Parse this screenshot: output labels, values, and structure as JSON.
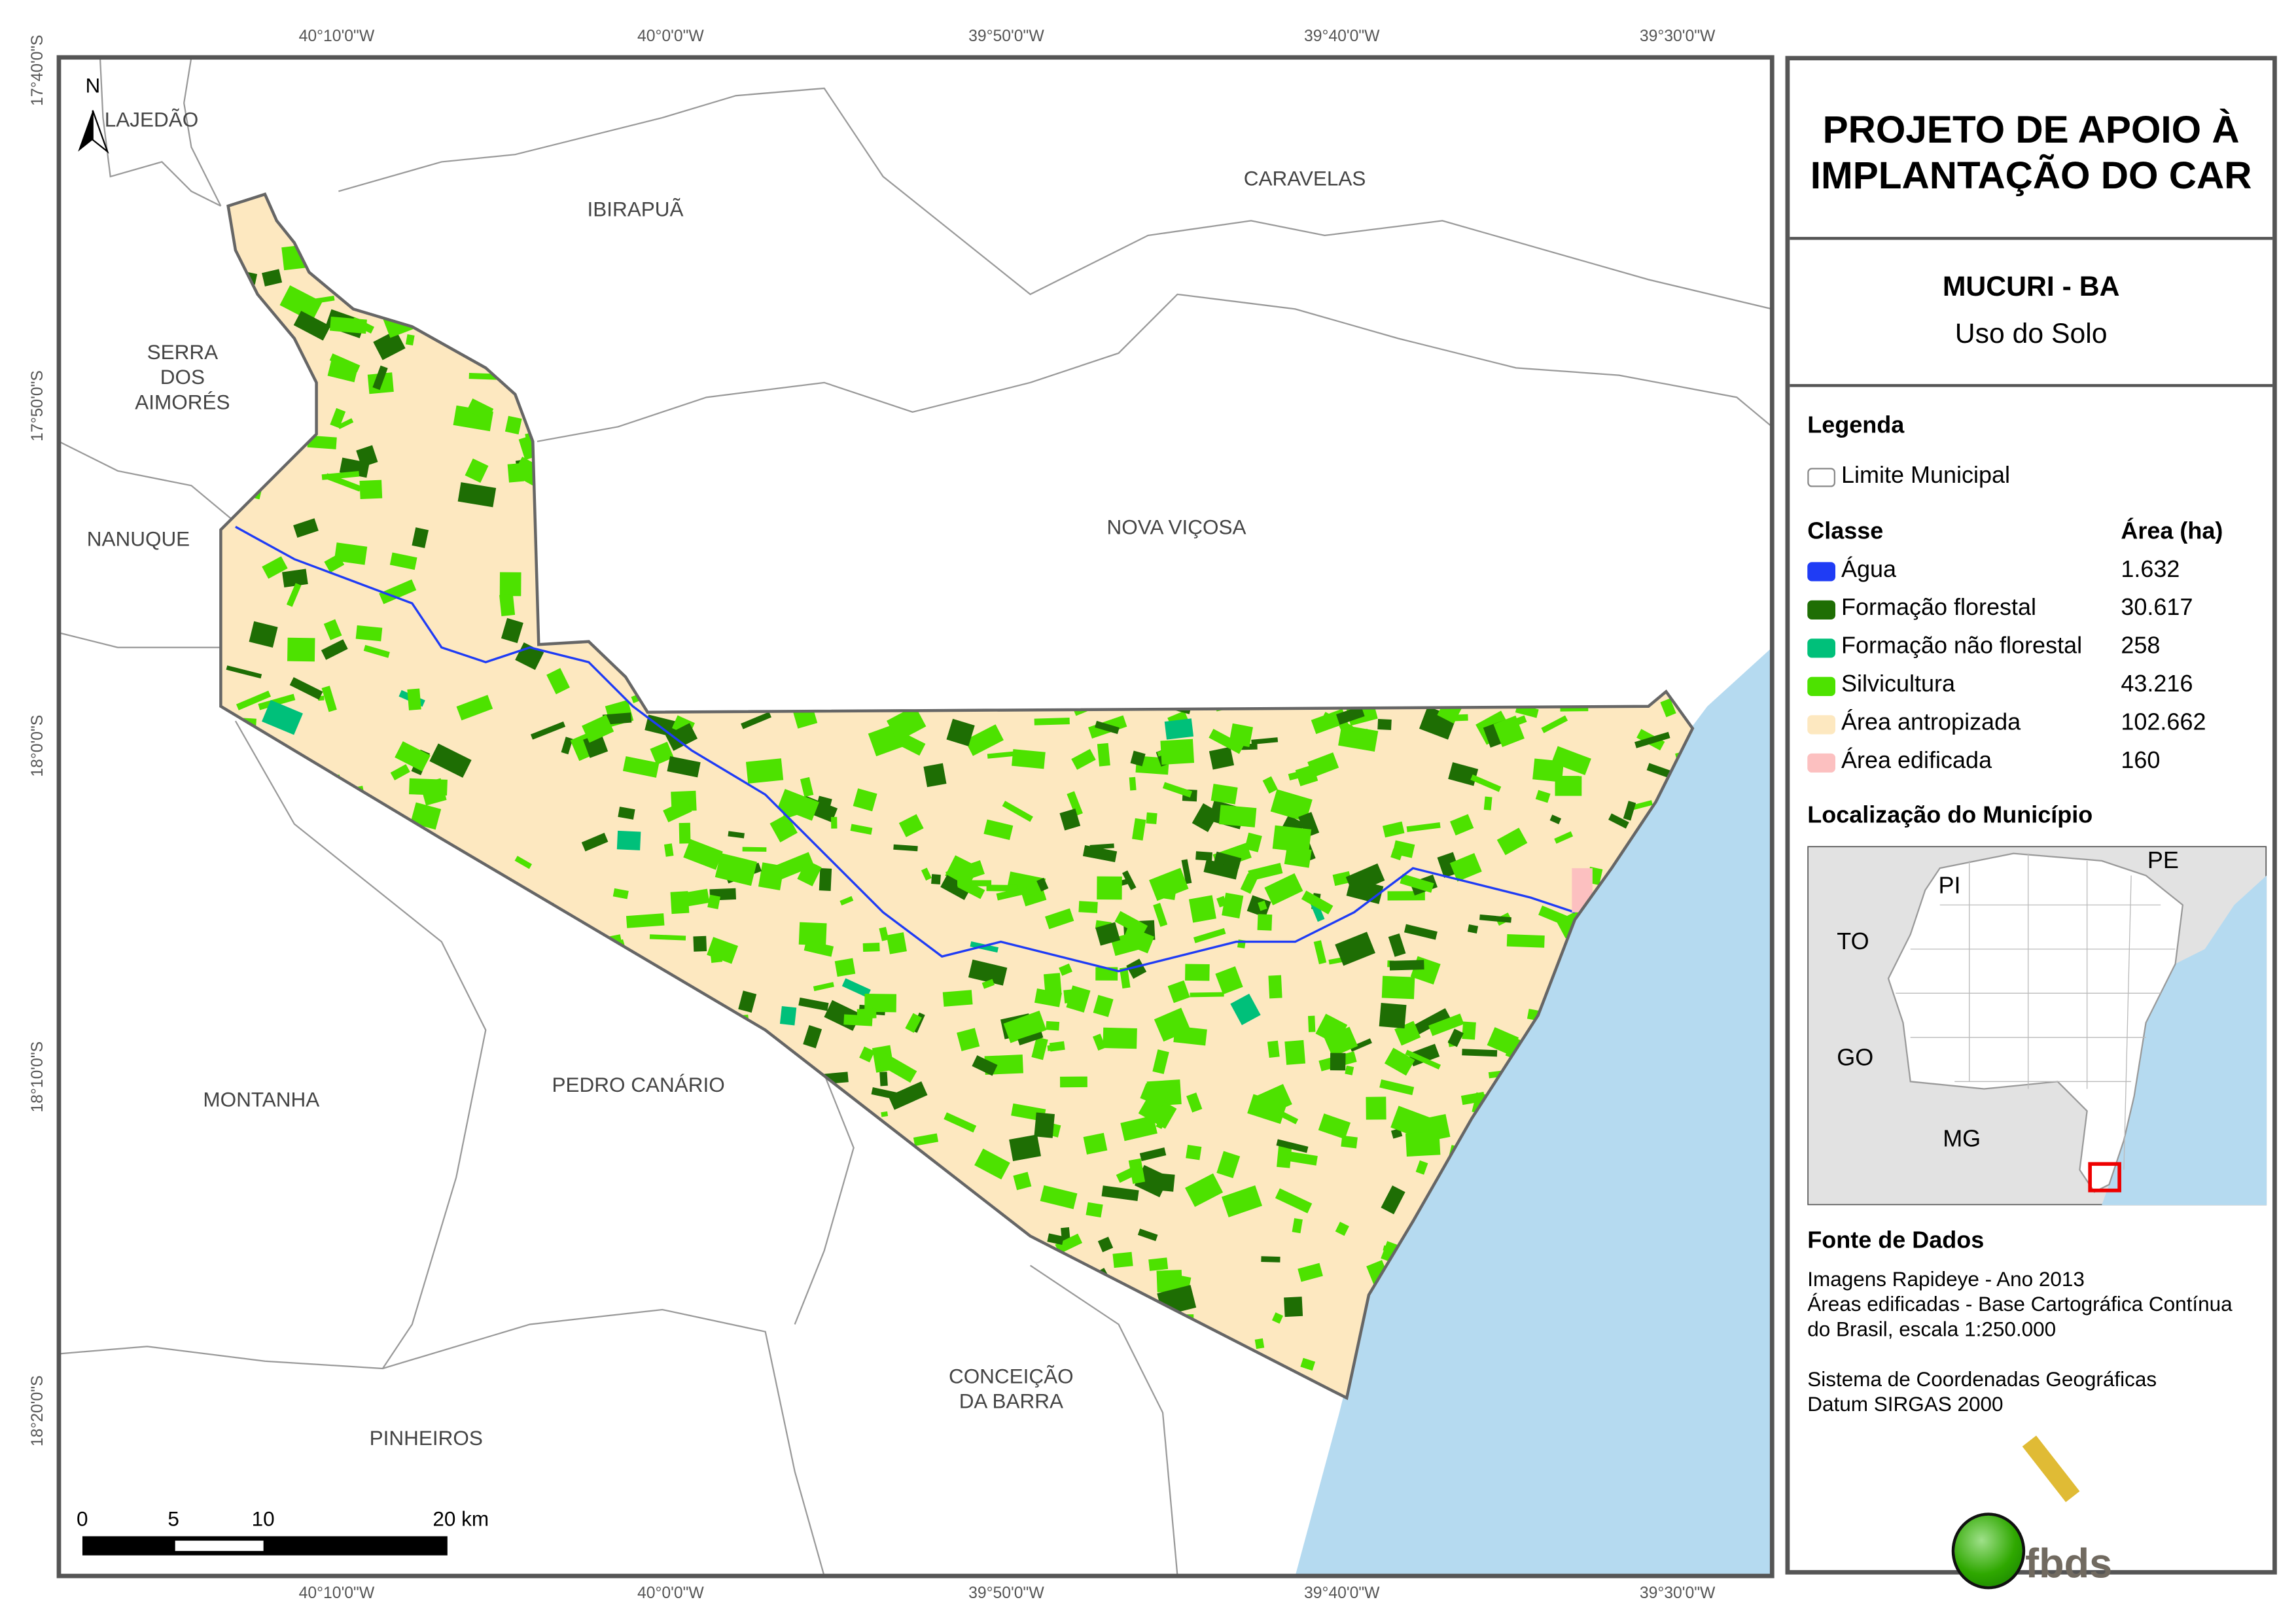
{
  "title": "PROJETO DE APOIO À IMPLANTAÇÃO DO CAR",
  "municipality": "MUCURI - BA",
  "subtitle": "Uso do Solo",
  "legend": {
    "heading": "Legenda",
    "boundary_label": "Limite Municipal",
    "class_header": "Classe",
    "area_header": "Área (ha)",
    "classes": [
      {
        "label": "Água",
        "area": "1.632",
        "color": "#1f3cf5"
      },
      {
        "label": "Formação florestal",
        "area": "30.617",
        "color": "#1e6e04"
      },
      {
        "label": "Formação não florestal",
        "area": "258",
        "color": "#00c07a"
      },
      {
        "label": "Silvicultura",
        "area": "43.216",
        "color": "#4de200"
      },
      {
        "label": "Área antropizada",
        "area": "102.662",
        "color": "#fde8c0"
      },
      {
        "label": "Área edificada",
        "area": "160",
        "color": "#fcc0c0"
      }
    ]
  },
  "location": {
    "heading": "Localização do Município",
    "states": [
      "PI",
      "PE",
      "TO",
      "GO",
      "MG"
    ]
  },
  "sources": {
    "heading": "Fonte de Dados",
    "lines": [
      "Imagens Rapideye - Ano 2013",
      "Áreas edificadas - Base Cartográfica Contínua",
      "do Brasil, escala 1:250.000"
    ],
    "crs": [
      "Sistema de Coordenadas Geográficas",
      "Datum SIRGAS 2000"
    ]
  },
  "logo_text": "fbds",
  "map": {
    "north": "N",
    "lon_labels": [
      "40°10'0\"W",
      "40°0'0\"W",
      "39°50'0\"W",
      "39°40'0\"W",
      "39°30'0\"W"
    ],
    "lat_labels": [
      "17°40'0\"S",
      "17°50'0\"S",
      "18°0'0\"S",
      "18°10'0\"S",
      "18°20'0\"S"
    ],
    "places": [
      "LAJEDÃO",
      "IBIRAPUÃ",
      "CARAVELAS",
      "SERRA DOS AIMORÉS",
      "NANUQUE",
      "NOVA VIÇOSA",
      "MONTANHA",
      "PEDRO CANÁRIO",
      "CONCEIÇÃO DA BARRA",
      "PINHEIROS"
    ],
    "scale": [
      "0",
      "5",
      "10",
      "20 km"
    ]
  }
}
